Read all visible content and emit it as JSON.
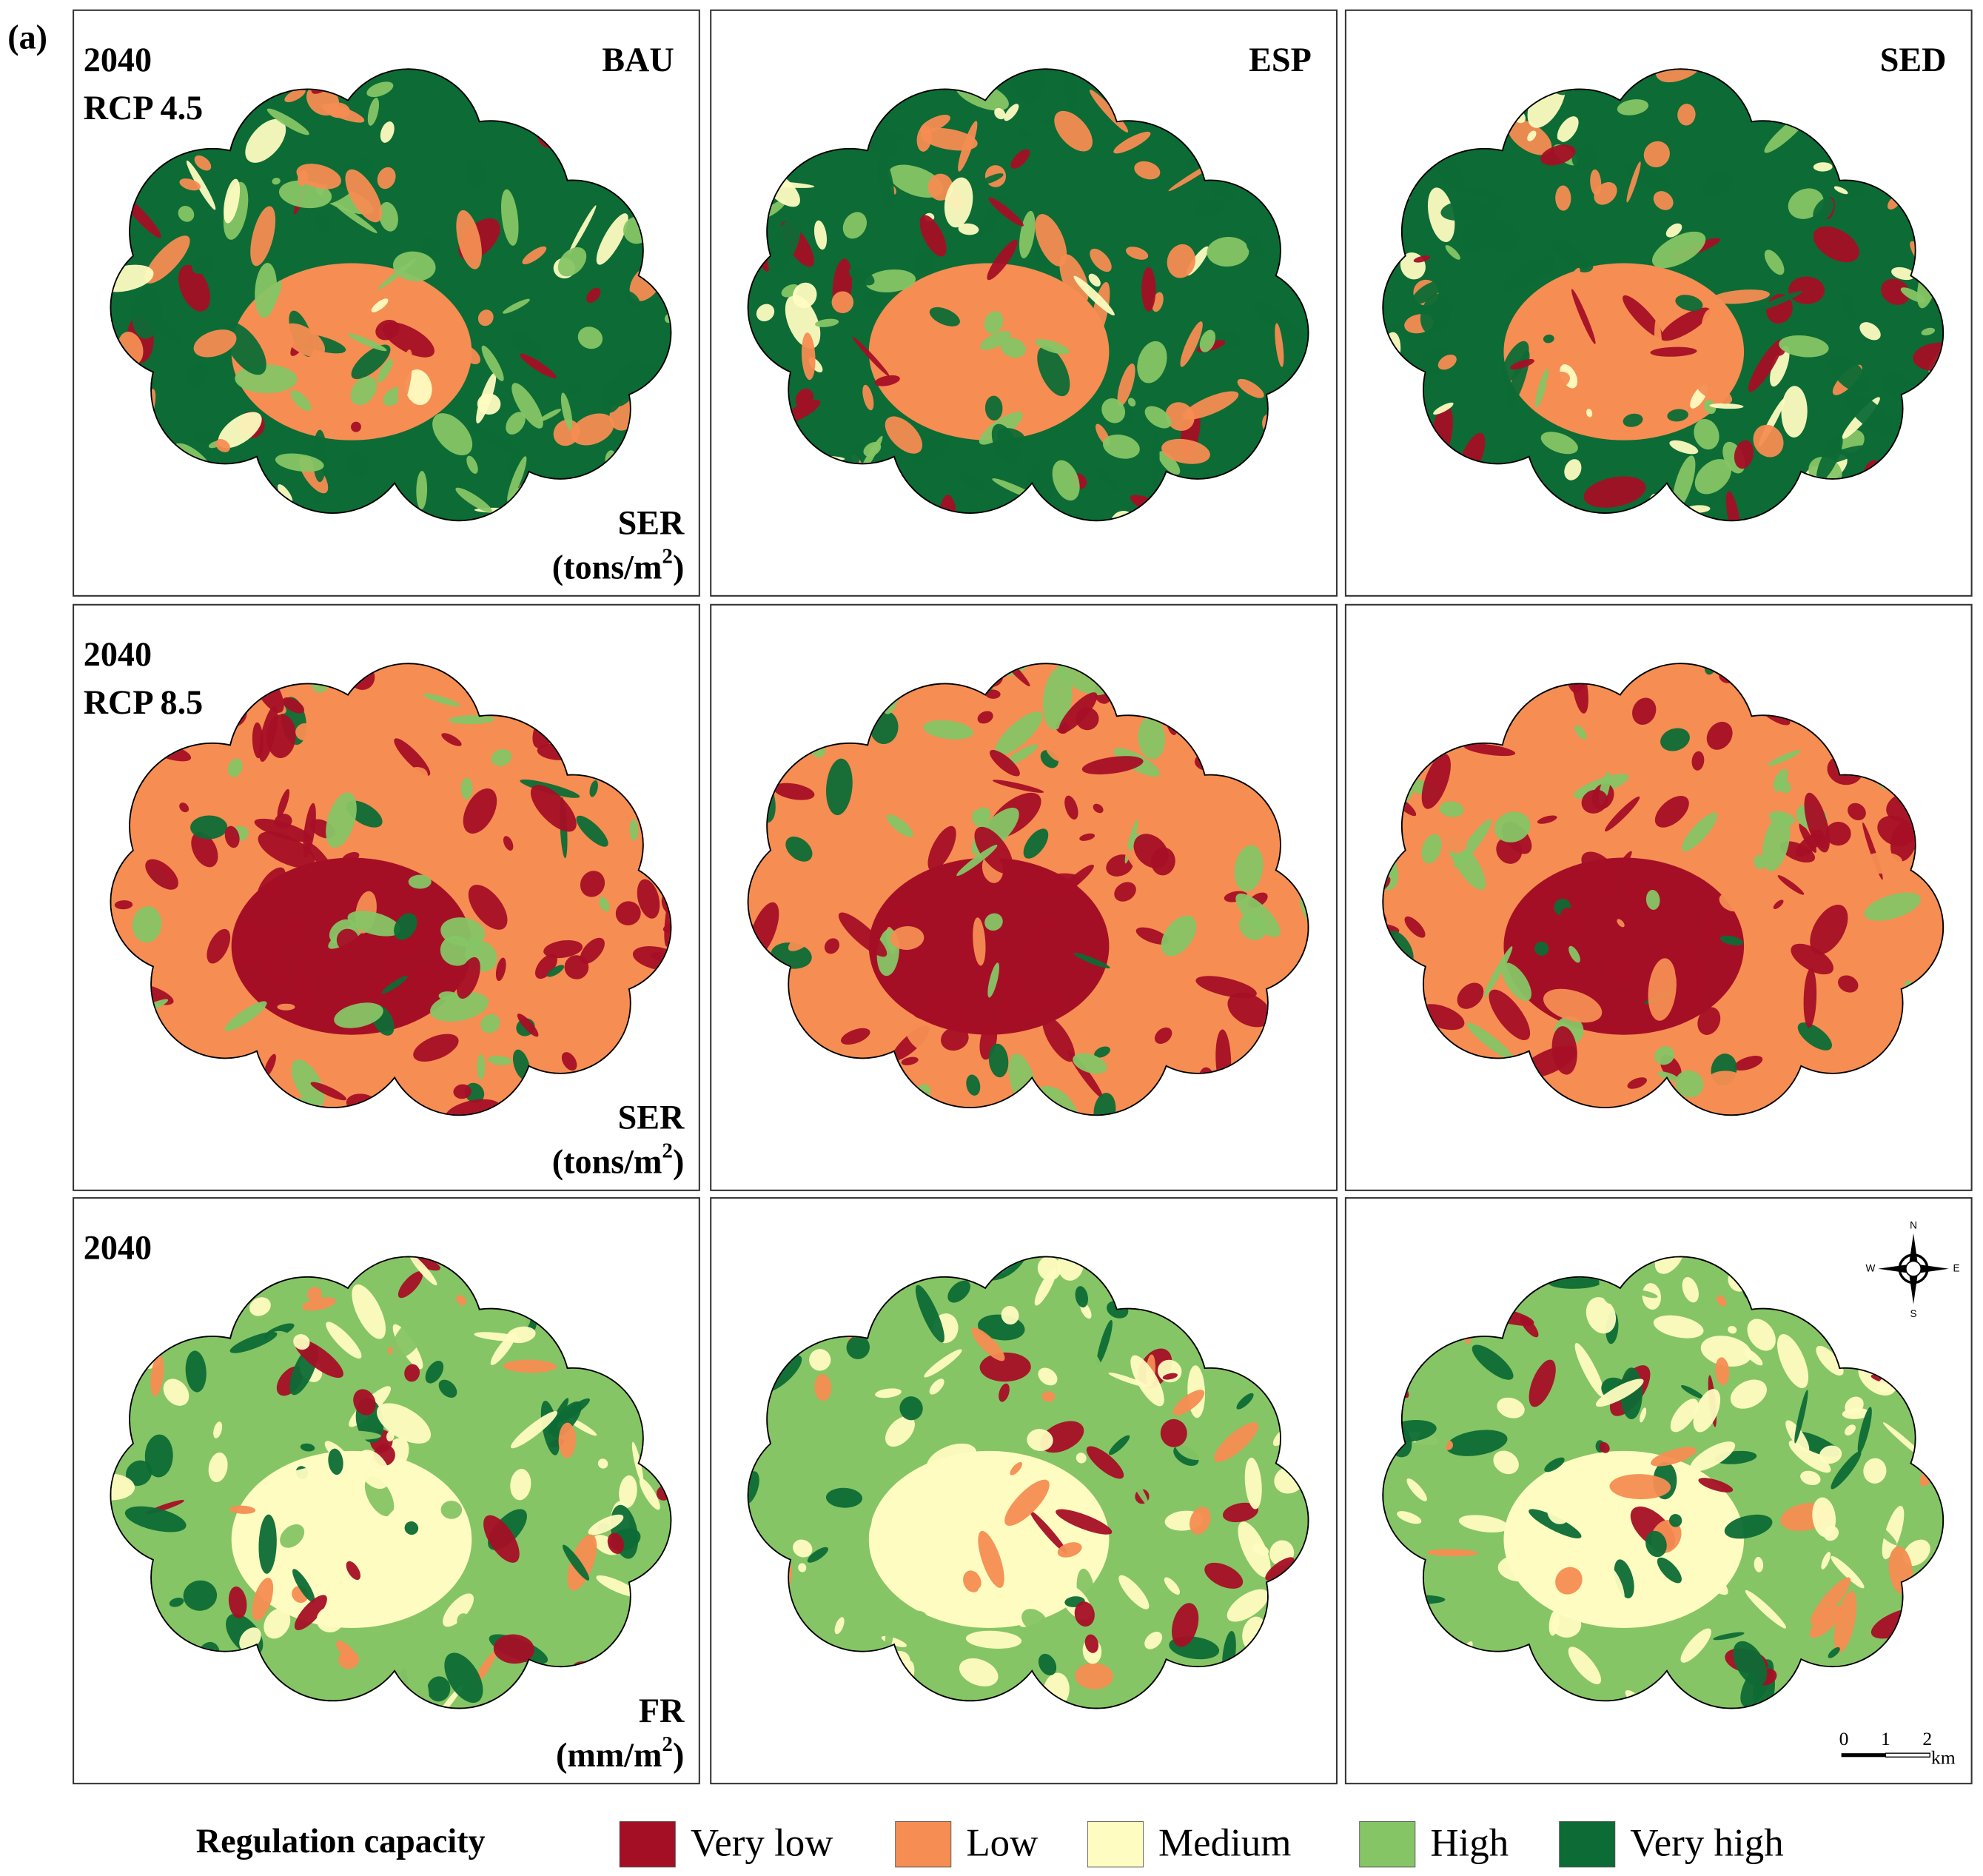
{
  "panel_label": "(a)",
  "columns": [
    "BAU",
    "ESP",
    "SED"
  ],
  "rows": [
    {
      "year": "2040",
      "scenario": "RCP 4.5",
      "variable": "SER",
      "unit": {
        "base": "(tons/m",
        "sup": "2",
        "end": ")"
      }
    },
    {
      "year": "2040",
      "scenario": "RCP 8.5",
      "variable": "SER",
      "unit": {
        "base": "(tons/m",
        "sup": "2",
        "end": ")"
      }
    },
    {
      "year": "2040",
      "variable": "FR",
      "unit": {
        "base": "(mm/m",
        "sup": "2",
        "end": ")"
      }
    }
  ],
  "compass": {
    "n": "N",
    "e": "E",
    "s": "S",
    "w": "W"
  },
  "scale_bar": {
    "ticks": [
      "0",
      "1",
      "2"
    ],
    "unit": "km"
  },
  "legend": {
    "title": "Regulation capacity",
    "items": [
      {
        "label": "Very low",
        "color": "#a50f26"
      },
      {
        "label": "Low",
        "color": "#f68d52"
      },
      {
        "label": "Medium",
        "color": "#fefcc0"
      },
      {
        "label": "High",
        "color": "#86c565"
      },
      {
        "label": "Very high",
        "color": "#0d6b35"
      }
    ]
  }
}
